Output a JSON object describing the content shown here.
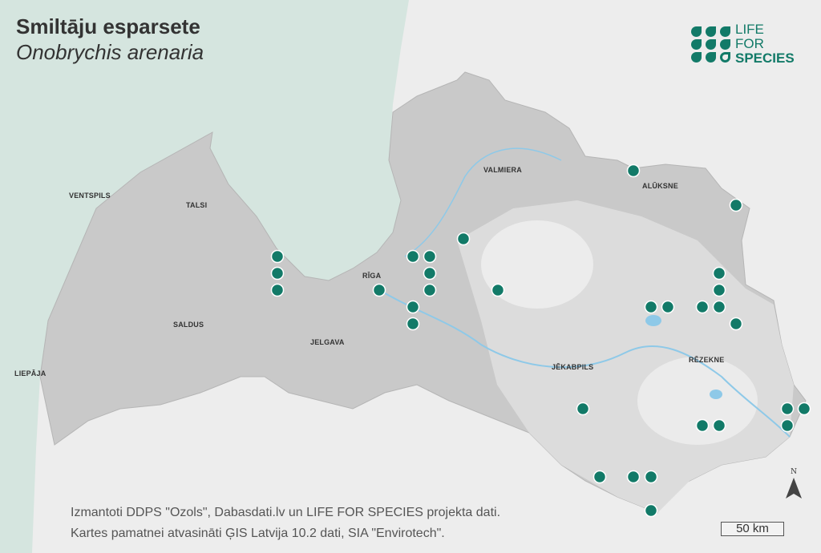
{
  "title": "Smiltāju esparsete",
  "subtitle": "Onobrychis arenaria",
  "logo": {
    "line1": "LIFE",
    "line2": "FOR",
    "line3": "SPECIES",
    "color": "#127a68"
  },
  "cities": [
    "VENTSPILS",
    "TALSI",
    "RĪGA",
    "VALMIERA",
    "ALŪKSNE",
    "SALDUS",
    "JELGAVA",
    "LIEPĀJA",
    "JĒKABPILS",
    "RĒZEKNE"
  ],
  "credits": {
    "line1": "Izmantoti DDPS \"Ozols\", Dabasdati.lv un LIFE FOR SPECIES projekta dati.",
    "line2": "Kartes pamatnei atvasināti ĢIS Latvija 10.2 dati, SIA \"Envirotech\"."
  },
  "north_label": "N",
  "scale_label": "50 km",
  "colors": {
    "sea": "#d5e5df",
    "country": "#c9c9c9",
    "neighbors": "#ededed",
    "occurrence": "#127a68",
    "water": "#8ec9e8"
  }
}
